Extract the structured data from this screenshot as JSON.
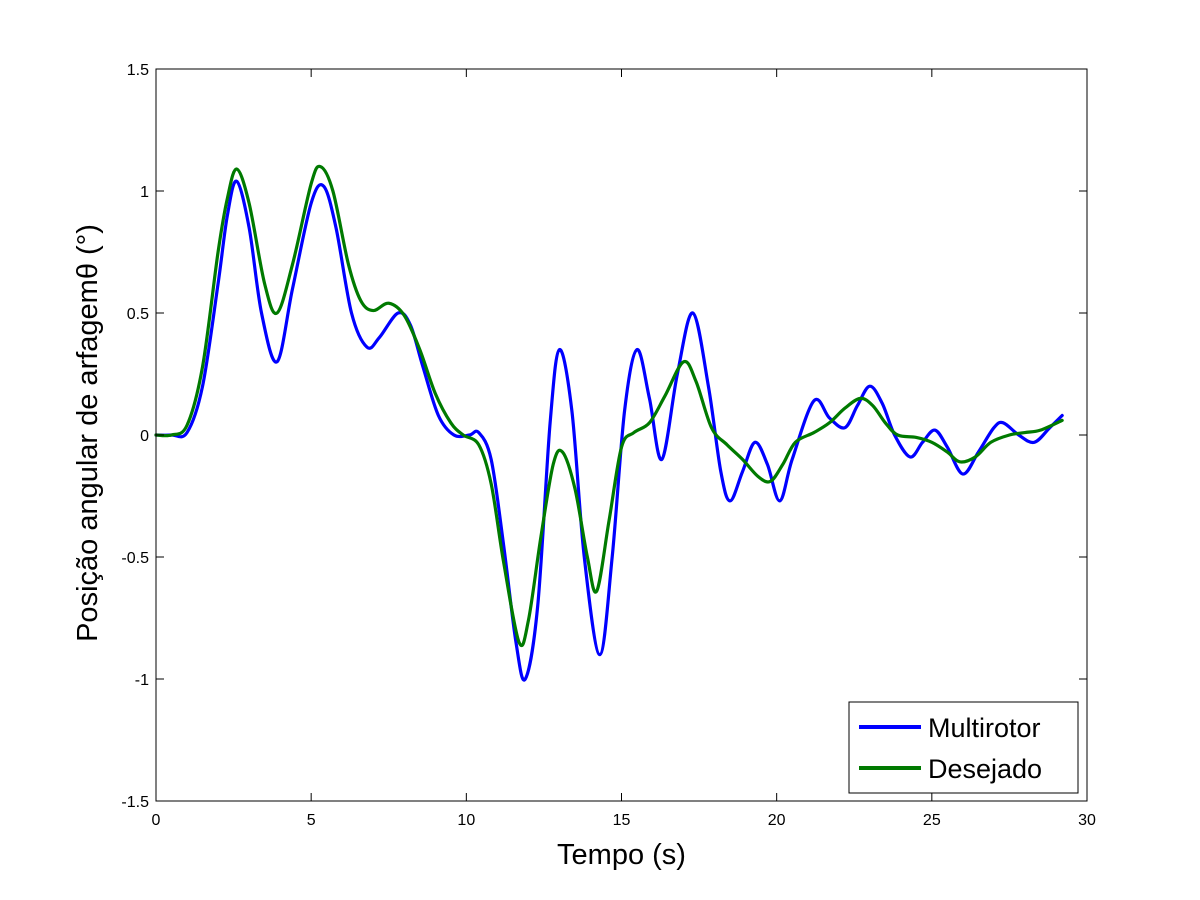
{
  "chart_data": {
    "type": "line",
    "title": "",
    "xlabel": "Tempo (s)",
    "ylabel": "Posição angular de arfagemθ (°)",
    "xlim": [
      0,
      30
    ],
    "ylim": [
      -1.5,
      1.5
    ],
    "xticks": [
      0,
      5,
      10,
      15,
      20,
      25,
      30
    ],
    "xtick_labels": [
      "0",
      "5",
      "10",
      "15",
      "20",
      "25",
      "30"
    ],
    "yticks": [
      -1.5,
      -1,
      -0.5,
      0,
      0.5,
      1,
      1.5
    ],
    "ytick_labels": [
      "-1.5",
      "-1",
      "-0.5",
      "0",
      "0.5",
      "1",
      "1.5"
    ],
    "grid": false,
    "legend_position": "bottom-right",
    "series": [
      {
        "name": "Multirotor",
        "color": "#0000ff",
        "points": [
          [
            0,
            0
          ],
          [
            0.5,
            0
          ],
          [
            1.0,
            0.01
          ],
          [
            1.5,
            0.2
          ],
          [
            2.0,
            0.62
          ],
          [
            2.3,
            0.9
          ],
          [
            2.6,
            1.04
          ],
          [
            3.0,
            0.85
          ],
          [
            3.4,
            0.5
          ],
          [
            3.9,
            0.3
          ],
          [
            4.4,
            0.6
          ],
          [
            5.0,
            0.95
          ],
          [
            5.4,
            1.02
          ],
          [
            5.8,
            0.85
          ],
          [
            6.3,
            0.5
          ],
          [
            6.8,
            0.36
          ],
          [
            7.2,
            0.4
          ],
          [
            7.8,
            0.5
          ],
          [
            8.2,
            0.45
          ],
          [
            8.6,
            0.28
          ],
          [
            9.1,
            0.08
          ],
          [
            9.6,
            0.0
          ],
          [
            10.1,
            0.0
          ],
          [
            10.4,
            0.01
          ],
          [
            10.8,
            -0.1
          ],
          [
            11.2,
            -0.45
          ],
          [
            11.6,
            -0.85
          ],
          [
            11.9,
            -1.0
          ],
          [
            12.3,
            -0.7
          ],
          [
            12.7,
            0.05
          ],
          [
            13.0,
            0.35
          ],
          [
            13.4,
            0.1
          ],
          [
            13.8,
            -0.5
          ],
          [
            14.3,
            -0.9
          ],
          [
            14.7,
            -0.5
          ],
          [
            15.1,
            0.1
          ],
          [
            15.5,
            0.35
          ],
          [
            15.9,
            0.15
          ],
          [
            16.3,
            -0.1
          ],
          [
            16.8,
            0.25
          ],
          [
            17.3,
            0.5
          ],
          [
            17.8,
            0.2
          ],
          [
            18.2,
            -0.15
          ],
          [
            18.5,
            -0.27
          ],
          [
            18.9,
            -0.15
          ],
          [
            19.3,
            -0.03
          ],
          [
            19.7,
            -0.12
          ],
          [
            20.1,
            -0.27
          ],
          [
            20.5,
            -0.1
          ],
          [
            21.2,
            0.14
          ],
          [
            21.7,
            0.07
          ],
          [
            22.2,
            0.03
          ],
          [
            22.6,
            0.12
          ],
          [
            23.0,
            0.2
          ],
          [
            23.4,
            0.13
          ],
          [
            23.8,
            0.0
          ],
          [
            24.3,
            -0.09
          ],
          [
            24.7,
            -0.03
          ],
          [
            25.1,
            0.02
          ],
          [
            25.5,
            -0.05
          ],
          [
            26.0,
            -0.16
          ],
          [
            26.5,
            -0.07
          ],
          [
            27.0,
            0.03
          ],
          [
            27.3,
            0.05
          ],
          [
            27.8,
            0.0
          ],
          [
            28.3,
            -0.03
          ],
          [
            28.8,
            0.03
          ],
          [
            29.2,
            0.08
          ]
        ]
      },
      {
        "name": "Desejado",
        "color": "#007a00",
        "points": [
          [
            0,
            0
          ],
          [
            0.5,
            0
          ],
          [
            1.0,
            0.04
          ],
          [
            1.5,
            0.28
          ],
          [
            2.0,
            0.75
          ],
          [
            2.3,
            0.97
          ],
          [
            2.6,
            1.09
          ],
          [
            3.0,
            0.95
          ],
          [
            3.5,
            0.62
          ],
          [
            3.9,
            0.5
          ],
          [
            4.4,
            0.7
          ],
          [
            5.0,
            1.03
          ],
          [
            5.3,
            1.1
          ],
          [
            5.7,
            1.0
          ],
          [
            6.2,
            0.7
          ],
          [
            6.6,
            0.55
          ],
          [
            7.0,
            0.51
          ],
          [
            7.5,
            0.54
          ],
          [
            8.0,
            0.49
          ],
          [
            8.5,
            0.35
          ],
          [
            9.0,
            0.17
          ],
          [
            9.5,
            0.05
          ],
          [
            9.9,
            0.0
          ],
          [
            10.4,
            -0.04
          ],
          [
            10.8,
            -0.2
          ],
          [
            11.2,
            -0.52
          ],
          [
            11.7,
            -0.85
          ],
          [
            12.0,
            -0.76
          ],
          [
            12.4,
            -0.42
          ],
          [
            12.8,
            -0.12
          ],
          [
            13.1,
            -0.07
          ],
          [
            13.5,
            -0.22
          ],
          [
            13.9,
            -0.5
          ],
          [
            14.2,
            -0.64
          ],
          [
            14.6,
            -0.35
          ],
          [
            15.0,
            -0.05
          ],
          [
            15.4,
            0.01
          ],
          [
            15.9,
            0.05
          ],
          [
            16.4,
            0.16
          ],
          [
            17.0,
            0.3
          ],
          [
            17.4,
            0.22
          ],
          [
            17.9,
            0.03
          ],
          [
            18.4,
            -0.04
          ],
          [
            18.9,
            -0.1
          ],
          [
            19.4,
            -0.17
          ],
          [
            19.8,
            -0.19
          ],
          [
            20.2,
            -0.12
          ],
          [
            20.6,
            -0.03
          ],
          [
            21.2,
            0.01
          ],
          [
            21.7,
            0.05
          ],
          [
            22.2,
            0.11
          ],
          [
            22.7,
            0.15
          ],
          [
            23.1,
            0.12
          ],
          [
            23.5,
            0.05
          ],
          [
            23.9,
            0.0
          ],
          [
            24.5,
            -0.01
          ],
          [
            25.0,
            -0.03
          ],
          [
            25.5,
            -0.07
          ],
          [
            25.9,
            -0.11
          ],
          [
            26.4,
            -0.09
          ],
          [
            26.9,
            -0.03
          ],
          [
            27.5,
            0.0
          ],
          [
            28.0,
            0.01
          ],
          [
            28.5,
            0.02
          ],
          [
            29.2,
            0.06
          ]
        ]
      }
    ]
  }
}
